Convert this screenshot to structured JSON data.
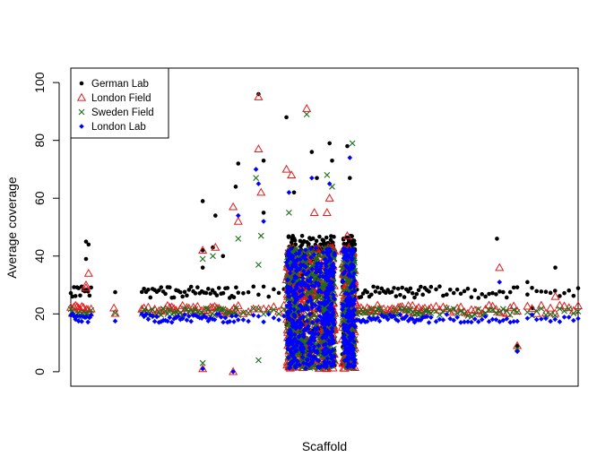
{
  "chart_data": {
    "type": "scatter",
    "title": "",
    "xlabel": "Scaffold",
    "ylabel": "Average coverage",
    "ylim": [
      -5,
      105
    ],
    "yticks": [
      0,
      20,
      40,
      60,
      80,
      100
    ],
    "x_tick_labels_shown": false,
    "grid": false,
    "legend_position": "top-left",
    "series": [
      {
        "name": "German Lab",
        "marker": "dot",
        "color": "#000000",
        "base": 27.5,
        "outliers": [
          {
            "x": 0.03,
            "y": 45
          },
          {
            "x": 0.03,
            "y": 39
          },
          {
            "x": 0.035,
            "y": 44
          },
          {
            "x": 0.26,
            "y": 42
          },
          {
            "x": 0.28,
            "y": 43
          },
          {
            "x": 0.26,
            "y": 36
          },
          {
            "x": 0.26,
            "y": 59
          },
          {
            "x": 0.285,
            "y": 54
          },
          {
            "x": 0.3,
            "y": 40
          },
          {
            "x": 0.325,
            "y": 64
          },
          {
            "x": 0.33,
            "y": 72
          },
          {
            "x": 0.37,
            "y": 96
          },
          {
            "x": 0.38,
            "y": 73
          },
          {
            "x": 0.38,
            "y": 55
          },
          {
            "x": 0.425,
            "y": 88
          },
          {
            "x": 0.44,
            "y": 62
          },
          {
            "x": 0.475,
            "y": 76
          },
          {
            "x": 0.485,
            "y": 67
          },
          {
            "x": 0.51,
            "y": 79
          },
          {
            "x": 0.515,
            "y": 73
          },
          {
            "x": 0.545,
            "y": 78
          },
          {
            "x": 0.55,
            "y": 67
          },
          {
            "x": 0.84,
            "y": 46
          },
          {
            "x": 0.9,
            "y": 31
          },
          {
            "x": 0.955,
            "y": 36
          },
          {
            "x": 0.88,
            "y": 9
          },
          {
            "x": 0.91,
            "y": 22
          }
        ]
      },
      {
        "name": "London Field",
        "marker": "open-triangle",
        "color": "#e31a1c",
        "base": 21.5,
        "outliers": [
          {
            "x": 0.03,
            "y": 29
          },
          {
            "x": 0.03,
            "y": 30
          },
          {
            "x": 0.035,
            "y": 34
          },
          {
            "x": 0.085,
            "y": 22
          },
          {
            "x": 0.26,
            "y": 42
          },
          {
            "x": 0.285,
            "y": 43
          },
          {
            "x": 0.32,
            "y": 57
          },
          {
            "x": 0.33,
            "y": 52
          },
          {
            "x": 0.37,
            "y": 95
          },
          {
            "x": 0.37,
            "y": 77
          },
          {
            "x": 0.375,
            "y": 62
          },
          {
            "x": 0.425,
            "y": 70
          },
          {
            "x": 0.435,
            "y": 68
          },
          {
            "x": 0.465,
            "y": 91
          },
          {
            "x": 0.48,
            "y": 55
          },
          {
            "x": 0.505,
            "y": 55
          },
          {
            "x": 0.51,
            "y": 60
          },
          {
            "x": 0.545,
            "y": 47
          },
          {
            "x": 0.26,
            "y": 1
          },
          {
            "x": 0.32,
            "y": 0
          },
          {
            "x": 0.845,
            "y": 36
          },
          {
            "x": 0.88,
            "y": 9
          },
          {
            "x": 0.955,
            "y": 26
          }
        ]
      },
      {
        "name": "Sweden Field",
        "marker": "x",
        "color": "#1a6e1a",
        "base": 20.5,
        "outliers": [
          {
            "x": 0.26,
            "y": 39
          },
          {
            "x": 0.28,
            "y": 40
          },
          {
            "x": 0.33,
            "y": 46
          },
          {
            "x": 0.365,
            "y": 67
          },
          {
            "x": 0.375,
            "y": 47
          },
          {
            "x": 0.37,
            "y": 37
          },
          {
            "x": 0.43,
            "y": 55
          },
          {
            "x": 0.465,
            "y": 89
          },
          {
            "x": 0.475,
            "y": 42
          },
          {
            "x": 0.505,
            "y": 68
          },
          {
            "x": 0.515,
            "y": 64
          },
          {
            "x": 0.555,
            "y": 79
          },
          {
            "x": 0.26,
            "y": 3
          },
          {
            "x": 0.37,
            "y": 4
          },
          {
            "x": 0.88,
            "y": 8
          }
        ]
      },
      {
        "name": "London Lab",
        "marker": "diamond",
        "color": "#0000ff",
        "base": 18.5,
        "outliers": [
          {
            "x": 0.26,
            "y": 1
          },
          {
            "x": 0.32,
            "y": 0
          },
          {
            "x": 0.33,
            "y": 54
          },
          {
            "x": 0.365,
            "y": 70
          },
          {
            "x": 0.37,
            "y": 65
          },
          {
            "x": 0.38,
            "y": 52
          },
          {
            "x": 0.43,
            "y": 62
          },
          {
            "x": 0.475,
            "y": 67
          },
          {
            "x": 0.51,
            "y": 65
          },
          {
            "x": 0.55,
            "y": 74
          },
          {
            "x": 0.88,
            "y": 7
          },
          {
            "x": 0.845,
            "y": 31
          }
        ]
      }
    ]
  }
}
